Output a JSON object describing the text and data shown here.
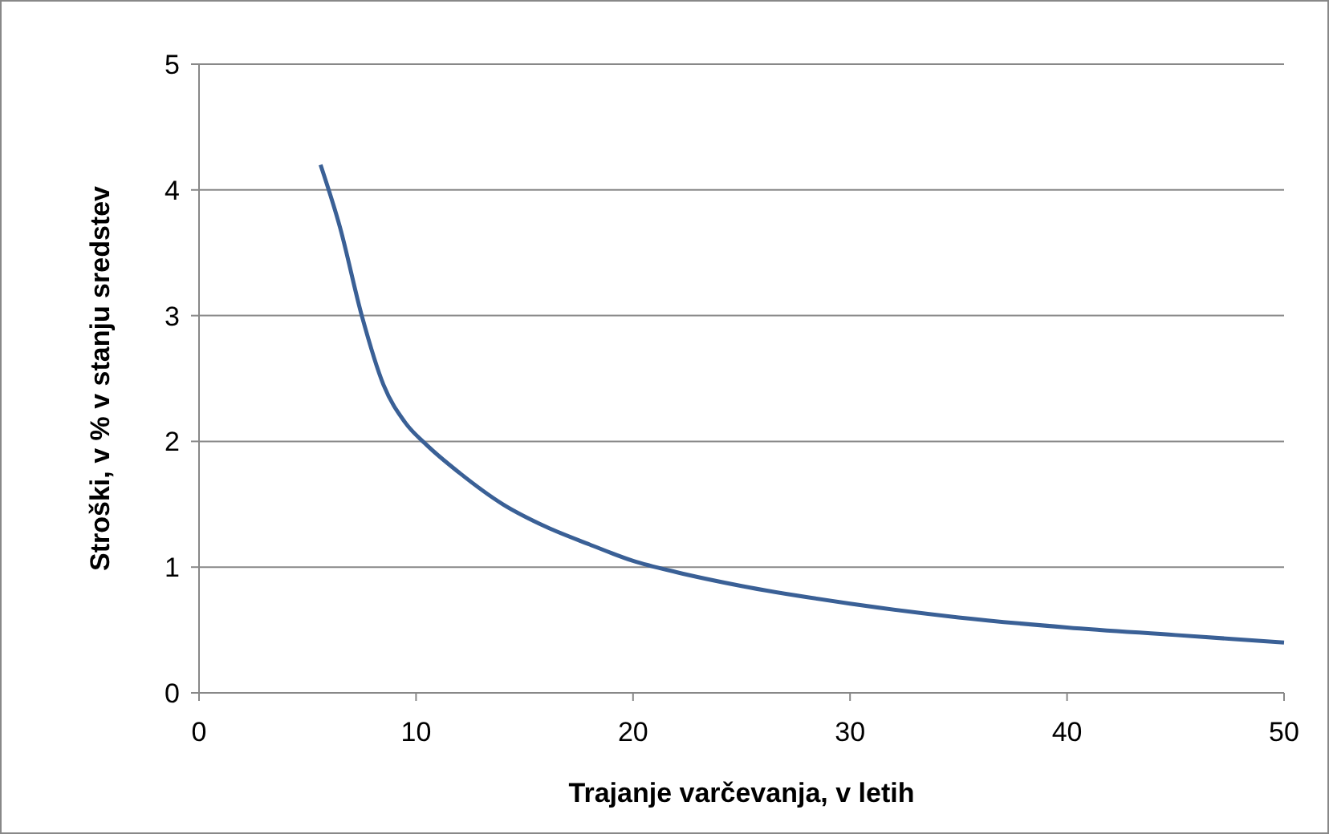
{
  "chart_data": {
    "type": "line",
    "xlabel": "Trajanje varčevanja, v letih",
    "ylabel": "Stroški, v % v stanju sredstev",
    "xlim": [
      0,
      50
    ],
    "ylim": [
      0,
      5
    ],
    "xticks": [
      0,
      10,
      20,
      30,
      40,
      50
    ],
    "yticks": [
      0,
      1,
      2,
      3,
      4,
      5
    ],
    "grid": "y",
    "marker": "none",
    "line_style": "solid",
    "series": [
      {
        "color": "#3a6096",
        "x": [
          5.6,
          6.5,
          7.5,
          8.5,
          9.5,
          10.5,
          12,
          14,
          16,
          18,
          20,
          22,
          25,
          30,
          35,
          40,
          45,
          50
        ],
        "values": [
          4.2,
          3.7,
          3.0,
          2.45,
          2.15,
          1.97,
          1.75,
          1.5,
          1.32,
          1.18,
          1.05,
          0.96,
          0.85,
          0.71,
          0.6,
          0.52,
          0.46,
          0.4
        ]
      }
    ]
  }
}
